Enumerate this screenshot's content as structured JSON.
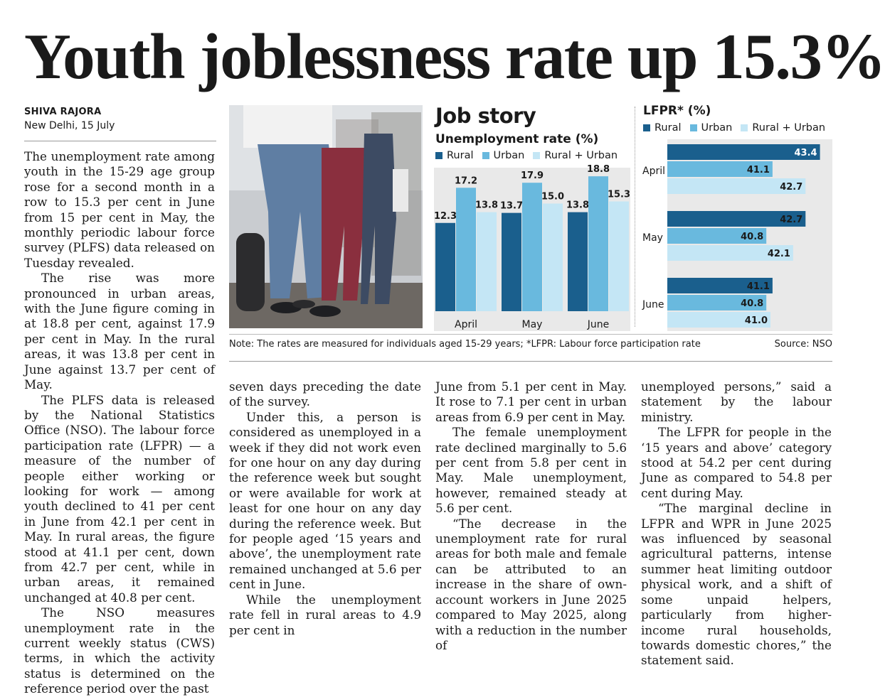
{
  "headline": "Youth joblessness rate up 15.3%",
  "byline": {
    "author": "SHIVA RAJORA",
    "dateline": "New Delhi, 15 July"
  },
  "graphic": {
    "title": "Job story",
    "note": "Note: The rates are measured for individuals aged 15-29 years; *LFPR: Labour force participation rate",
    "source": "Source: NSO"
  },
  "colors": {
    "rural": "#1a5f8d",
    "urban": "#69b9de",
    "combined": "#c4e6f5"
  },
  "chart_data": [
    {
      "type": "bar",
      "title": "Unemployment rate (%)",
      "categories": [
        "April",
        "May",
        "June"
      ],
      "series": [
        {
          "name": "Rural",
          "values": [
            12.3,
            13.7,
            13.8
          ]
        },
        {
          "name": "Urban",
          "values": [
            17.2,
            17.9,
            18.8
          ]
        },
        {
          "name": "Rural + Urban",
          "values": [
            13.8,
            15.0,
            15.3
          ]
        }
      ],
      "value_labels": [
        [
          "12.3",
          "13.7",
          "13.8"
        ],
        [
          "17.2",
          "17.9",
          "18.8"
        ],
        [
          "13.8",
          "15.0",
          "15.3"
        ]
      ],
      "ylim": [
        0,
        20
      ],
      "legend": "top"
    },
    {
      "type": "bar",
      "orientation": "horizontal",
      "title": "LFPR* (%)",
      "categories": [
        "April",
        "May",
        "June"
      ],
      "series": [
        {
          "name": "Rural",
          "values": [
            43.4,
            42.7,
            41.1
          ]
        },
        {
          "name": "Urban",
          "values": [
            41.1,
            40.8,
            40.8
          ]
        },
        {
          "name": "Rural + Urban",
          "values": [
            42.7,
            42.1,
            41.0
          ]
        }
      ],
      "value_labels": [
        [
          "43.4",
          "42.7",
          "41.1"
        ],
        [
          "41.1",
          "40.8",
          "40.8"
        ],
        [
          "42.7",
          "42.1",
          "41.0"
        ]
      ],
      "xlim": [
        36,
        44
      ],
      "legend": "top"
    }
  ],
  "article": {
    "col1": [
      "The unemployment rate among youth in the 15-29 age group rose for a second month in a row to 15.3 per cent in June from 15 per cent in May, the monthly periodic labour force survey (PLFS) data released on Tuesday revealed.",
      "The rise was more pronounced in urban areas, with the June figure coming in at 18.8 per cent, against 17.9 per cent in May. In the rural areas, it was 13.8 per cent in June against 13.7 per cent of May.",
      "The PLFS data is released by the National Statistics Office (NSO). The labour force participation rate (LFPR) — a measure of the number of people either working or looking for work — among youth declined to 41 per cent in June from 42.1 per cent in May. In rural areas, the figure stood at 41.1 per cent, down from 42.7 per cent, while in urban areas, it remained unchanged at 40.8 per cent.",
      "The NSO measures unemployment rate in the current weekly status (CWS) terms, in which the activity status is determined on the reference period over the past"
    ],
    "col2": [
      "seven days preceding the date of the survey.",
      "Under this, a person is considered as unemployed in a week if they did not work even for one hour on any day during the reference week but sought or were available for work at least for one hour on any day during the reference week. But for people aged ‘15 years and above’, the unemployment rate remained unchanged at 5.6 per cent in June.",
      "While the unemployment rate fell in rural areas to 4.9 per cent in"
    ],
    "col3": [
      "June from 5.1 per cent in May. It rose to 7.1 per cent in urban areas from 6.9 per cent in May.",
      "The female unemployment rate declined marginally to 5.6 per cent from 5.8 per cent in May. Male unemployment, however, remained steady at 5.6 per cent.",
      "“The decrease in the unemployment rate for rural areas for both male and female can be attributed to an increase in the share of own-account workers in June 2025 compared to May 2025, along with a reduction in the number of"
    ],
    "col4": [
      "unemployed persons,” said a statement by the labour ministry.",
      "The LFPR for people in the ‘15 years and above’ category stood at 54.2 per cent during June as compared to 54.8 per cent during May.",
      "“The marginal decline in LFPR and WPR in June 2025 was influenced by seasonal agricultural patterns, intense summer heat limiting outdoor physical work, and a shift of some unpaid helpers, particularly from higher-income rural households, towards domestic chores,” the statement said."
    ]
  }
}
